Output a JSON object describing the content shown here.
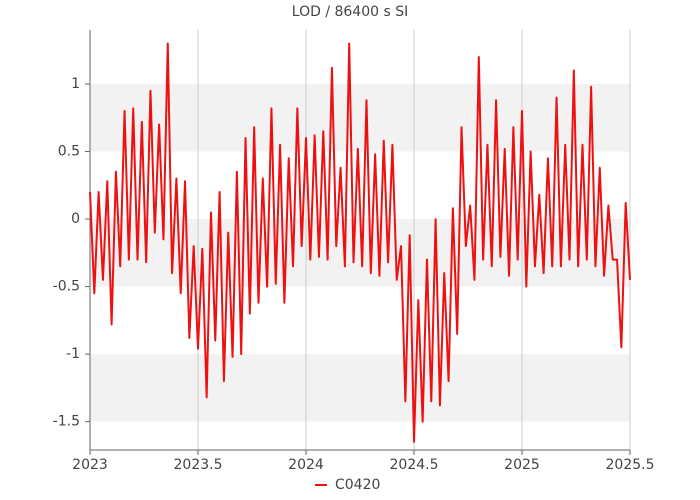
{
  "chart_data": {
    "type": "line",
    "title": "LOD / 86400 s SI",
    "x": [
      2023,
      2023.02,
      2023.04,
      2023.06,
      2023.08,
      2023.1,
      2023.12,
      2023.14,
      2023.16,
      2023.18,
      2023.2,
      2023.22,
      2023.24,
      2023.26,
      2023.28,
      2023.3,
      2023.32,
      2023.34,
      2023.36,
      2023.38,
      2023.4,
      2023.42,
      2023.44,
      2023.46,
      2023.48,
      2023.5,
      2023.52,
      2023.54,
      2023.56,
      2023.58,
      2023.6,
      2023.62,
      2023.64,
      2023.66,
      2023.68,
      2023.7,
      2023.72,
      2023.74,
      2023.76,
      2023.78,
      2023.8,
      2023.82,
      2023.84,
      2023.86,
      2023.88,
      2023.9,
      2023.92,
      2023.94,
      2023.96,
      2023.98,
      2024,
      2024.02,
      2024.04,
      2024.06,
      2024.08,
      2024.1,
      2024.12,
      2024.14,
      2024.16,
      2024.18,
      2024.2,
      2024.22,
      2024.24,
      2024.26,
      2024.28,
      2024.3,
      2024.32,
      2024.34,
      2024.36,
      2024.38,
      2024.4,
      2024.42,
      2024.44,
      2024.46,
      2024.48,
      2024.5,
      2024.52,
      2024.54,
      2024.56,
      2024.58,
      2024.6,
      2024.62,
      2024.64,
      2024.66,
      2024.68,
      2024.7,
      2024.72,
      2024.74,
      2024.76,
      2024.78,
      2024.8,
      2024.82,
      2024.84,
      2024.86,
      2024.88,
      2024.9,
      2024.92,
      2024.94,
      2024.96,
      2024.98,
      2025,
      2025.02,
      2025.04,
      2025.06,
      2025.08,
      2025.1,
      2025.12,
      2025.14,
      2025.16,
      2025.18,
      2025.2,
      2025.22,
      2025.24,
      2025.26,
      2025.28,
      2025.3,
      2025.32,
      2025.34,
      2025.36,
      2025.38,
      2025.4,
      2025.42,
      2025.44,
      2025.46,
      2025.48,
      2025.5
    ],
    "series": [
      {
        "name": "C0420",
        "color": "#ee1111",
        "values": [
          0.2,
          -0.55,
          0.2,
          -0.45,
          0.28,
          -0.78,
          0.35,
          -0.35,
          0.8,
          -0.3,
          0.82,
          -0.3,
          0.72,
          -0.32,
          0.95,
          -0.1,
          0.7,
          -0.15,
          1.3,
          -0.4,
          0.3,
          -0.55,
          0.28,
          -0.88,
          -0.2,
          -0.96,
          -0.22,
          -1.32,
          0.05,
          -0.9,
          0.2,
          -1.2,
          -0.1,
          -1.02,
          0.35,
          -1.0,
          0.6,
          -0.7,
          0.68,
          -0.62,
          0.3,
          -0.5,
          0.82,
          -0.48,
          0.55,
          -0.62,
          0.45,
          -0.35,
          0.82,
          -0.2,
          0.6,
          -0.3,
          0.62,
          -0.28,
          0.65,
          -0.3,
          1.12,
          -0.2,
          0.38,
          -0.35,
          1.3,
          -0.32,
          0.52,
          -0.35,
          0.88,
          -0.4,
          0.48,
          -0.42,
          0.58,
          -0.32,
          0.55,
          -0.45,
          -0.2,
          -1.35,
          -0.12,
          -1.65,
          -0.6,
          -1.5,
          -0.3,
          -1.35,
          0.0,
          -1.38,
          -0.4,
          -1.2,
          0.08,
          -0.85,
          0.68,
          -0.2,
          0.1,
          -0.45,
          1.2,
          -0.3,
          0.55,
          -0.35,
          0.88,
          -0.28,
          0.52,
          -0.42,
          0.68,
          -0.3,
          0.8,
          -0.5,
          0.5,
          -0.35,
          0.18,
          -0.4,
          0.45,
          -0.35,
          0.9,
          -0.35,
          0.55,
          -0.3,
          1.1,
          -0.35,
          0.55,
          -0.3,
          0.98,
          -0.35,
          0.38,
          -0.42,
          0.1,
          -0.3,
          -0.3,
          -0.95,
          0.12,
          -0.45
        ]
      }
    ],
    "xlim": [
      2023,
      2025.5
    ],
    "xticks": [
      2023,
      2023.5,
      2024,
      2024.5,
      2025,
      2025.5
    ],
    "ylim": [
      -1.71,
      1.4
    ],
    "yticks": [
      -1.5,
      -1,
      -0.5,
      0,
      0.5,
      1
    ],
    "grid": true
  }
}
